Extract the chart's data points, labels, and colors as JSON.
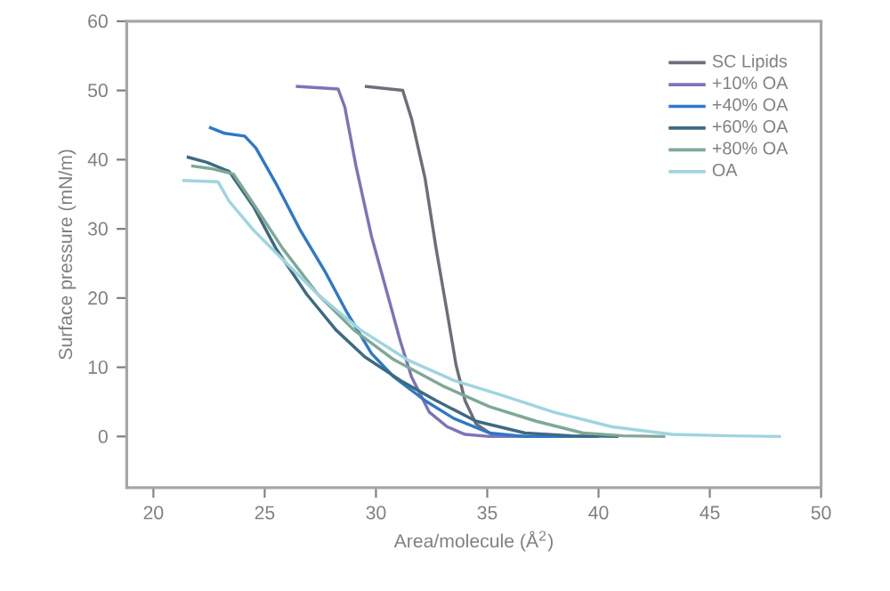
{
  "chart_data": {
    "type": "line",
    "xlabel": "Area/molecule (Å$^{2}$)",
    "ylabel": "Surface pressure (mN/m)",
    "xlim": [
      18.8,
      50
    ],
    "ylim": [
      -7.4,
      60
    ],
    "xticks": [
      20,
      25,
      30,
      35,
      40,
      45,
      50
    ],
    "yticks": [
      0,
      10,
      20,
      30,
      40,
      50,
      60
    ],
    "grid": false,
    "legend": "top right",
    "marker": "none",
    "line_style": "solid",
    "series": [
      {
        "name": "SC Lipids",
        "color": "#6e6e78",
        "x": [
          29.5,
          31.2,
          31.6,
          32.2,
          32.7,
          33.2,
          33.6,
          34.0,
          34.5,
          35.3,
          36.7,
          38.0
        ],
        "values": [
          50.6,
          50.0,
          45.9,
          37.4,
          27.2,
          17.9,
          10.3,
          5.2,
          1.8,
          0.1,
          0,
          0
        ]
      },
      {
        "name": "+10% OA",
        "color": "#7b74b8",
        "x": [
          26.4,
          28.3,
          28.6,
          29.1,
          29.8,
          30.6,
          31.1,
          31.6,
          32.4,
          33.2,
          34.0,
          35.1,
          37.0
        ],
        "values": [
          50.6,
          50.2,
          47.6,
          39.1,
          28.9,
          19.6,
          13.7,
          8.6,
          3.5,
          1.4,
          0.3,
          0,
          0
        ]
      },
      {
        "name": "+40% OA",
        "color": "#2f78c8",
        "x": [
          22.5,
          23.2,
          24.1,
          24.6,
          25.5,
          26.6,
          27.7,
          28.7,
          29.8,
          30.8,
          32.2,
          33.5,
          35.1,
          36.7,
          40.0
        ],
        "values": [
          44.7,
          43.8,
          43.4,
          41.7,
          36.6,
          29.8,
          23.9,
          17.9,
          12.0,
          8.6,
          5.2,
          2.6,
          0.5,
          0,
          0
        ]
      },
      {
        "name": "+60% OA",
        "color": "#3d6a80",
        "x": [
          21.5,
          22.4,
          23.4,
          24.5,
          25.5,
          26.9,
          28.2,
          29.5,
          31.1,
          32.7,
          34.5,
          36.7,
          38.8,
          40.9
        ],
        "values": [
          40.4,
          39.6,
          38.3,
          33.2,
          27.2,
          20.5,
          15.4,
          11.5,
          8.1,
          5.2,
          2.2,
          0.5,
          0.1,
          0
        ]
      },
      {
        "name": "+80% OA",
        "color": "#7fa896",
        "x": [
          21.7,
          22.6,
          23.6,
          24.5,
          25.8,
          27.4,
          29.0,
          30.8,
          33.0,
          35.1,
          37.2,
          39.3,
          41.1,
          43.0
        ],
        "values": [
          39.1,
          38.7,
          37.9,
          33.6,
          27.2,
          20.5,
          15.4,
          11.1,
          7.3,
          4.3,
          2.2,
          0.5,
          0.1,
          0
        ]
      },
      {
        "name": "OA",
        "color": "#9fd4e0",
        "x": [
          21.3,
          22.9,
          23.4,
          24.5,
          25.8,
          27.4,
          29.3,
          31.4,
          33.5,
          35.6,
          38.0,
          40.6,
          43.3,
          45.9,
          48.2
        ],
        "values": [
          37.0,
          36.8,
          34.0,
          29.8,
          25.6,
          20.5,
          15.4,
          11.1,
          8.1,
          6.0,
          3.5,
          1.4,
          0.3,
          0.1,
          0
        ]
      }
    ]
  }
}
